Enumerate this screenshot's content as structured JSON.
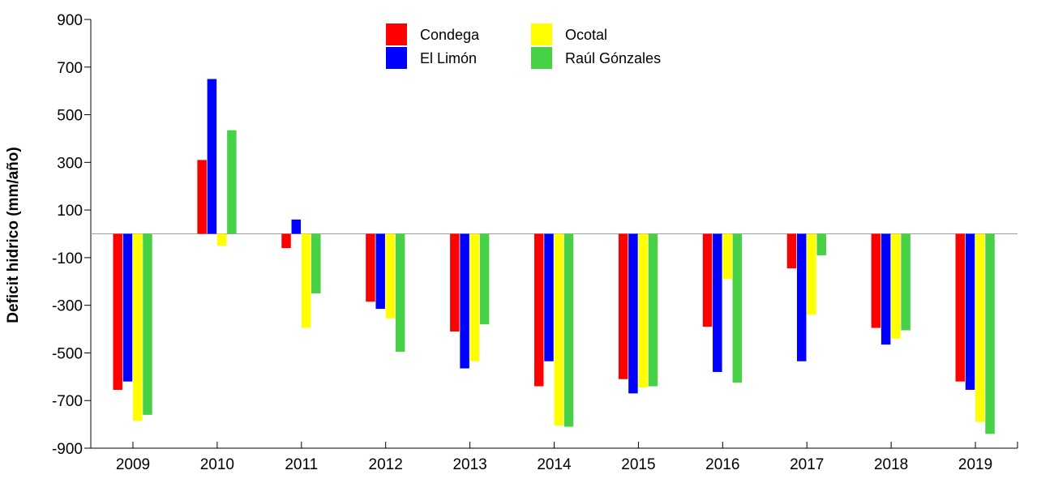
{
  "chart_data": {
    "type": "bar",
    "title": "",
    "xlabel": "",
    "ylabel": "Deficit hidrico (mm/año)",
    "ylim": [
      -900,
      900
    ],
    "yticks": [
      900,
      700,
      500,
      300,
      100,
      -100,
      -300,
      -500,
      -700,
      -900
    ],
    "grid": false,
    "zero_line": true,
    "legend_position": "top-center",
    "categories": [
      "2009",
      "2010",
      "2011",
      "2012",
      "2013",
      "2014",
      "2015",
      "2016",
      "2017",
      "2018",
      "2019"
    ],
    "series": [
      {
        "name": "Condega",
        "color": "#ff0000",
        "values": [
          -655,
          310,
          -60,
          -285,
          -410,
          -640,
          -610,
          -390,
          -145,
          -395,
          -620
        ]
      },
      {
        "name": "El Limón",
        "color": "#0000ff",
        "values": [
          -620,
          650,
          60,
          -315,
          -565,
          -535,
          -670,
          -580,
          -535,
          -465,
          -655
        ]
      },
      {
        "name": "Ocotal",
        "color": "#ffff00",
        "values": [
          -785,
          -50,
          -395,
          -355,
          -535,
          -805,
          -645,
          -190,
          -340,
          -440,
          -790
        ]
      },
      {
        "name": "Raúl Gónzales",
        "color": "#47d147",
        "values": [
          -760,
          435,
          -250,
          -495,
          -380,
          -810,
          -640,
          -625,
          -90,
          -405,
          -840
        ]
      }
    ]
  }
}
